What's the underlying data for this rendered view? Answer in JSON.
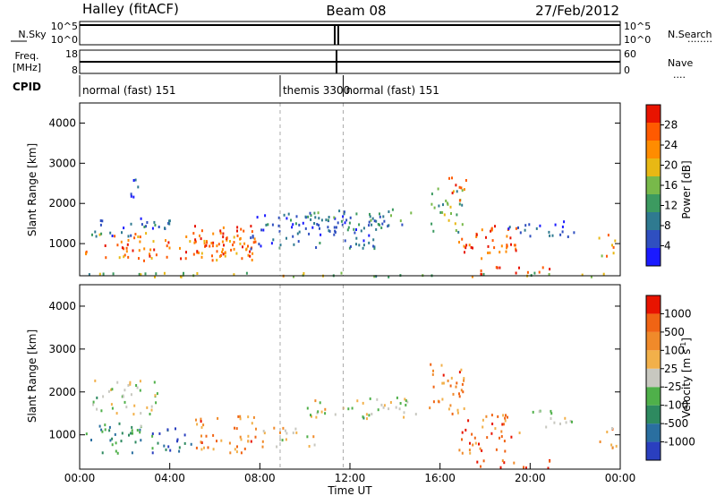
{
  "header": {
    "title_left": "Halley (fitACF)",
    "title_center": "Beam 08",
    "title_right": "27/Feb/2012"
  },
  "status_panels": {
    "nsky": {
      "label": "N.Sky",
      "ticks": [
        "10^5",
        "10^0"
      ]
    },
    "nsearch": {
      "label": "N.Search",
      "ticks": [
        "10^5",
        "10^0"
      ]
    },
    "freq": {
      "label_line1": "Freq.",
      "label_line2": "[MHz]",
      "ticks": [
        "18",
        "8"
      ]
    },
    "nave": {
      "label": "Nave",
      "ticks": [
        "60",
        "0"
      ]
    },
    "cpid": {
      "label": "CPID",
      "segments": [
        {
          "text": "normal (fast) 151",
          "start": 0.0,
          "end": 8.9
        },
        {
          "text": "themis 3300",
          "start": 8.9,
          "end": 11.7
        },
        {
          "text": "normal (fast) 151",
          "start": 11.7,
          "end": 24.0
        }
      ]
    }
  },
  "chart_data": [
    {
      "type": "heatmap",
      "name": "power-panel",
      "xlabel": "",
      "ylabel": "Slant Range [km]",
      "xlim": [
        0,
        24
      ],
      "ylim": [
        200,
        4500
      ],
      "y_ticks": [
        1000,
        2000,
        3000,
        4000
      ],
      "x_ticks": [
        0,
        4,
        8,
        12,
        16,
        20,
        24
      ],
      "colorbar": {
        "label": "Power [dB]",
        "range": [
          0,
          32
        ],
        "ticks": [
          "4",
          "8",
          "12",
          "16",
          "20",
          "24",
          "28"
        ],
        "colors": [
          "#1a1aff",
          "#2f4fc0",
          "#2f7a90",
          "#3c9a60",
          "#78b94a",
          "#e8b814",
          "#ff8c00",
          "#ff5a00",
          "#e81400"
        ]
      },
      "regions": [
        {
          "t0": 0.2,
          "t1": 7.8,
          "r0": 600,
          "r1": 1300,
          "level": 0.75
        },
        {
          "t0": 0.5,
          "t1": 4.0,
          "r0": 1200,
          "r1": 1700,
          "level": 0.2
        },
        {
          "t0": 2.2,
          "t1": 2.8,
          "r0": 2100,
          "r1": 2700,
          "level": 0.2
        },
        {
          "t0": 5.0,
          "t1": 7.8,
          "r0": 650,
          "r1": 1500,
          "level": 0.9
        },
        {
          "t0": 7.5,
          "t1": 13.5,
          "r0": 900,
          "r1": 1800,
          "level": 0.2
        },
        {
          "t0": 10.0,
          "t1": 15.0,
          "r0": 1400,
          "r1": 1900,
          "level": 0.3
        },
        {
          "t0": 15.5,
          "t1": 17.0,
          "r0": 1300,
          "r1": 2400,
          "level": 0.45
        },
        {
          "t0": 16.3,
          "t1": 17.2,
          "r0": 2100,
          "r1": 2700,
          "level": 0.85
        },
        {
          "t0": 16.8,
          "t1": 19.5,
          "r0": 600,
          "r1": 1500,
          "level": 0.85
        },
        {
          "t0": 17.5,
          "t1": 21.0,
          "r0": 250,
          "r1": 450,
          "level": 0.95
        },
        {
          "t0": 19.0,
          "t1": 22.0,
          "r0": 1200,
          "r1": 1600,
          "level": 0.15
        },
        {
          "t0": 23.0,
          "t1": 23.8,
          "r0": 700,
          "r1": 1300,
          "level": 0.7
        },
        {
          "t0": 0.0,
          "t1": 24.0,
          "r0": 200,
          "r1": 300,
          "level": 0.5
        }
      ]
    },
    {
      "type": "heatmap",
      "name": "velocity-panel",
      "xlabel": "Time UT",
      "ylabel": "Slant Range [km]",
      "xlim": [
        0,
        24
      ],
      "ylim": [
        200,
        4500
      ],
      "y_ticks": [
        1000,
        2000,
        3000,
        4000
      ],
      "x_ticks": [
        0,
        4,
        8,
        12,
        16,
        20,
        24
      ],
      "x_tick_labels": [
        "00:00",
        "04:00",
        "08:00",
        "12:00",
        "16:00",
        "20:00",
        "00:00"
      ],
      "colorbar": {
        "label": "Velocity [m s",
        "label_sup": "-1",
        "label_close": "]",
        "ticks": [
          "1000",
          "500",
          "100",
          "25",
          "-25",
          "-100",
          "-500",
          "-1000"
        ],
        "colors": [
          "#2a3fbf",
          "#2a6fa0",
          "#2e8a60",
          "#4fb04a",
          "#c8c8c0",
          "#f2b04a",
          "#f08a2a",
          "#f06414",
          "#e81400"
        ]
      },
      "regions": [
        {
          "t0": 0.2,
          "t1": 3.2,
          "r0": 600,
          "r1": 1300,
          "level": 0.3
        },
        {
          "t0": 3.2,
          "t1": 5.0,
          "r0": 600,
          "r1": 1200,
          "level": 0.15
        },
        {
          "t0": 5.0,
          "t1": 7.8,
          "r0": 600,
          "r1": 1500,
          "level": 0.75
        },
        {
          "t0": 7.8,
          "t1": 10.5,
          "r0": 750,
          "r1": 1200,
          "level": 0.6
        },
        {
          "t0": 0.5,
          "t1": 3.5,
          "r0": 1500,
          "r1": 2300,
          "level": 0.5
        },
        {
          "t0": 10.0,
          "t1": 15.0,
          "r0": 1400,
          "r1": 1900,
          "level": 0.5
        },
        {
          "t0": 15.5,
          "t1": 17.2,
          "r0": 1500,
          "r1": 2700,
          "level": 0.75
        },
        {
          "t0": 16.8,
          "t1": 19.5,
          "r0": 600,
          "r1": 1500,
          "level": 0.78
        },
        {
          "t0": 17.5,
          "t1": 21.0,
          "r0": 250,
          "r1": 450,
          "level": 0.8
        },
        {
          "t0": 20.0,
          "t1": 22.0,
          "r0": 1200,
          "r1": 1600,
          "level": 0.5
        },
        {
          "t0": 23.0,
          "t1": 23.8,
          "r0": 700,
          "r1": 1300,
          "level": 0.7
        }
      ]
    }
  ]
}
